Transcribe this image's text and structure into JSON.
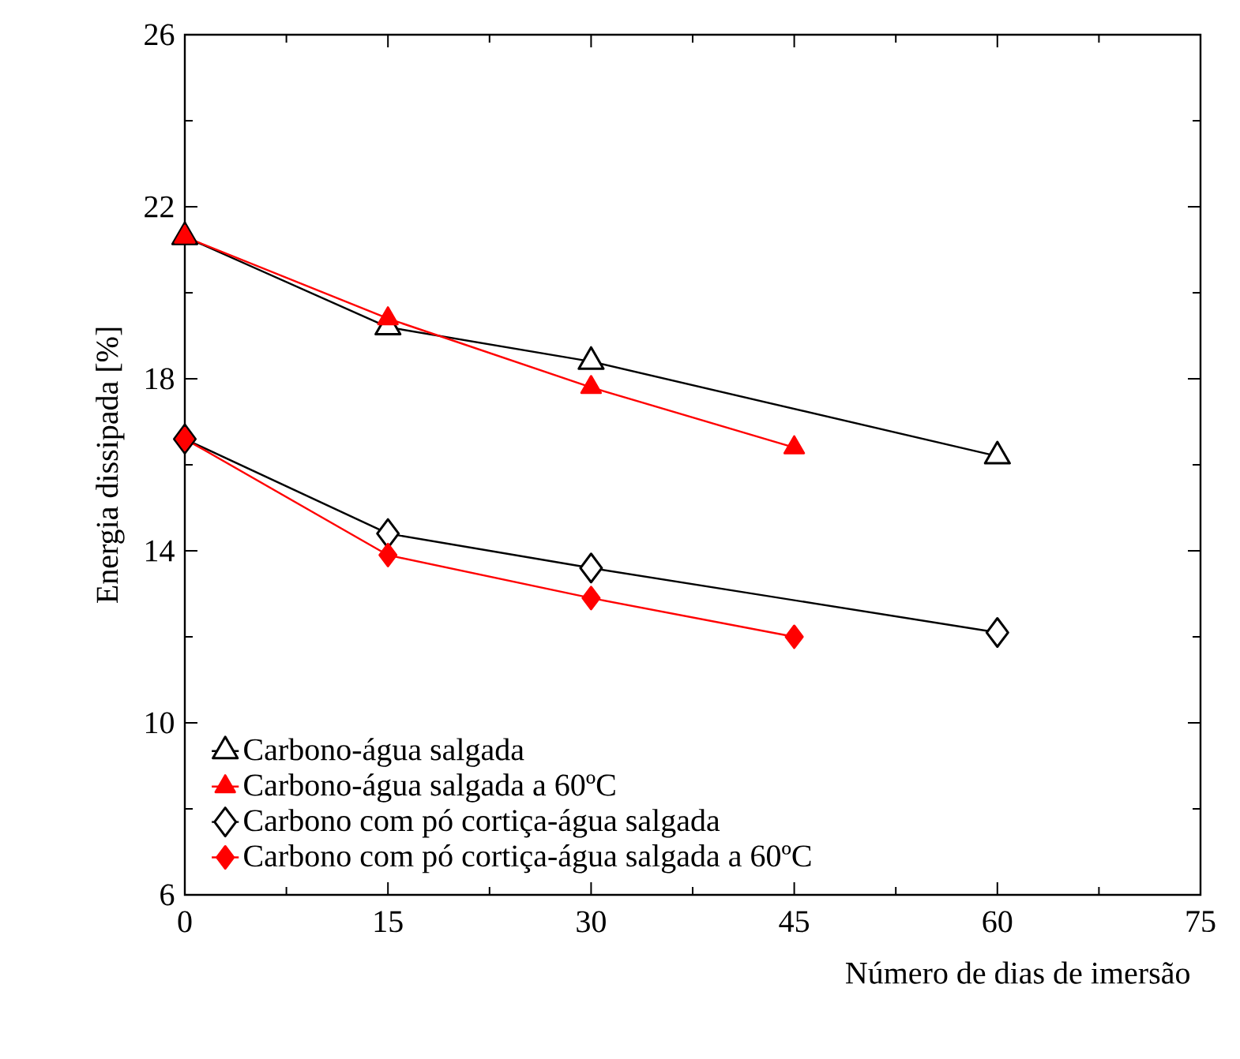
{
  "chart_data": {
    "type": "line",
    "xlabel": "Número de dias de imersão",
    "ylabel": "Energia dissipada [%]",
    "xlim": [
      0,
      75
    ],
    "xticks": [
      0,
      15,
      30,
      45,
      60,
      75
    ],
    "ylim": [
      6,
      26
    ],
    "yticks": [
      6,
      10,
      14,
      18,
      22,
      26
    ],
    "legend": "bottom left",
    "grid": false,
    "line_style": "solid",
    "series": [
      {
        "name": "Carbono-água salgada",
        "color": "#000000",
        "marker": "triangle",
        "x": [
          0,
          15,
          30,
          60
        ],
        "values": [
          21.3,
          19.2,
          18.4,
          16.2
        ]
      },
      {
        "name": "Carbono-água salgada a 60ºC",
        "color": "#ff0000",
        "marker": "triangle",
        "x": [
          0,
          15,
          30,
          45
        ],
        "values": [
          21.3,
          19.4,
          17.8,
          16.4
        ]
      },
      {
        "name": "Carbono com pó cortiça-água salgada",
        "color": "#000000",
        "marker": "diamond",
        "x": [
          0,
          15,
          30,
          60
        ],
        "values": [
          16.6,
          14.4,
          13.6,
          12.1
        ]
      },
      {
        "name": "Carbono com pó cortiça-água salgada a 60ºC",
        "color": "#ff0000",
        "marker": "diamond",
        "x": [
          0,
          15,
          30,
          45
        ],
        "values": [
          16.6,
          13.9,
          12.9,
          12.0
        ]
      }
    ]
  }
}
